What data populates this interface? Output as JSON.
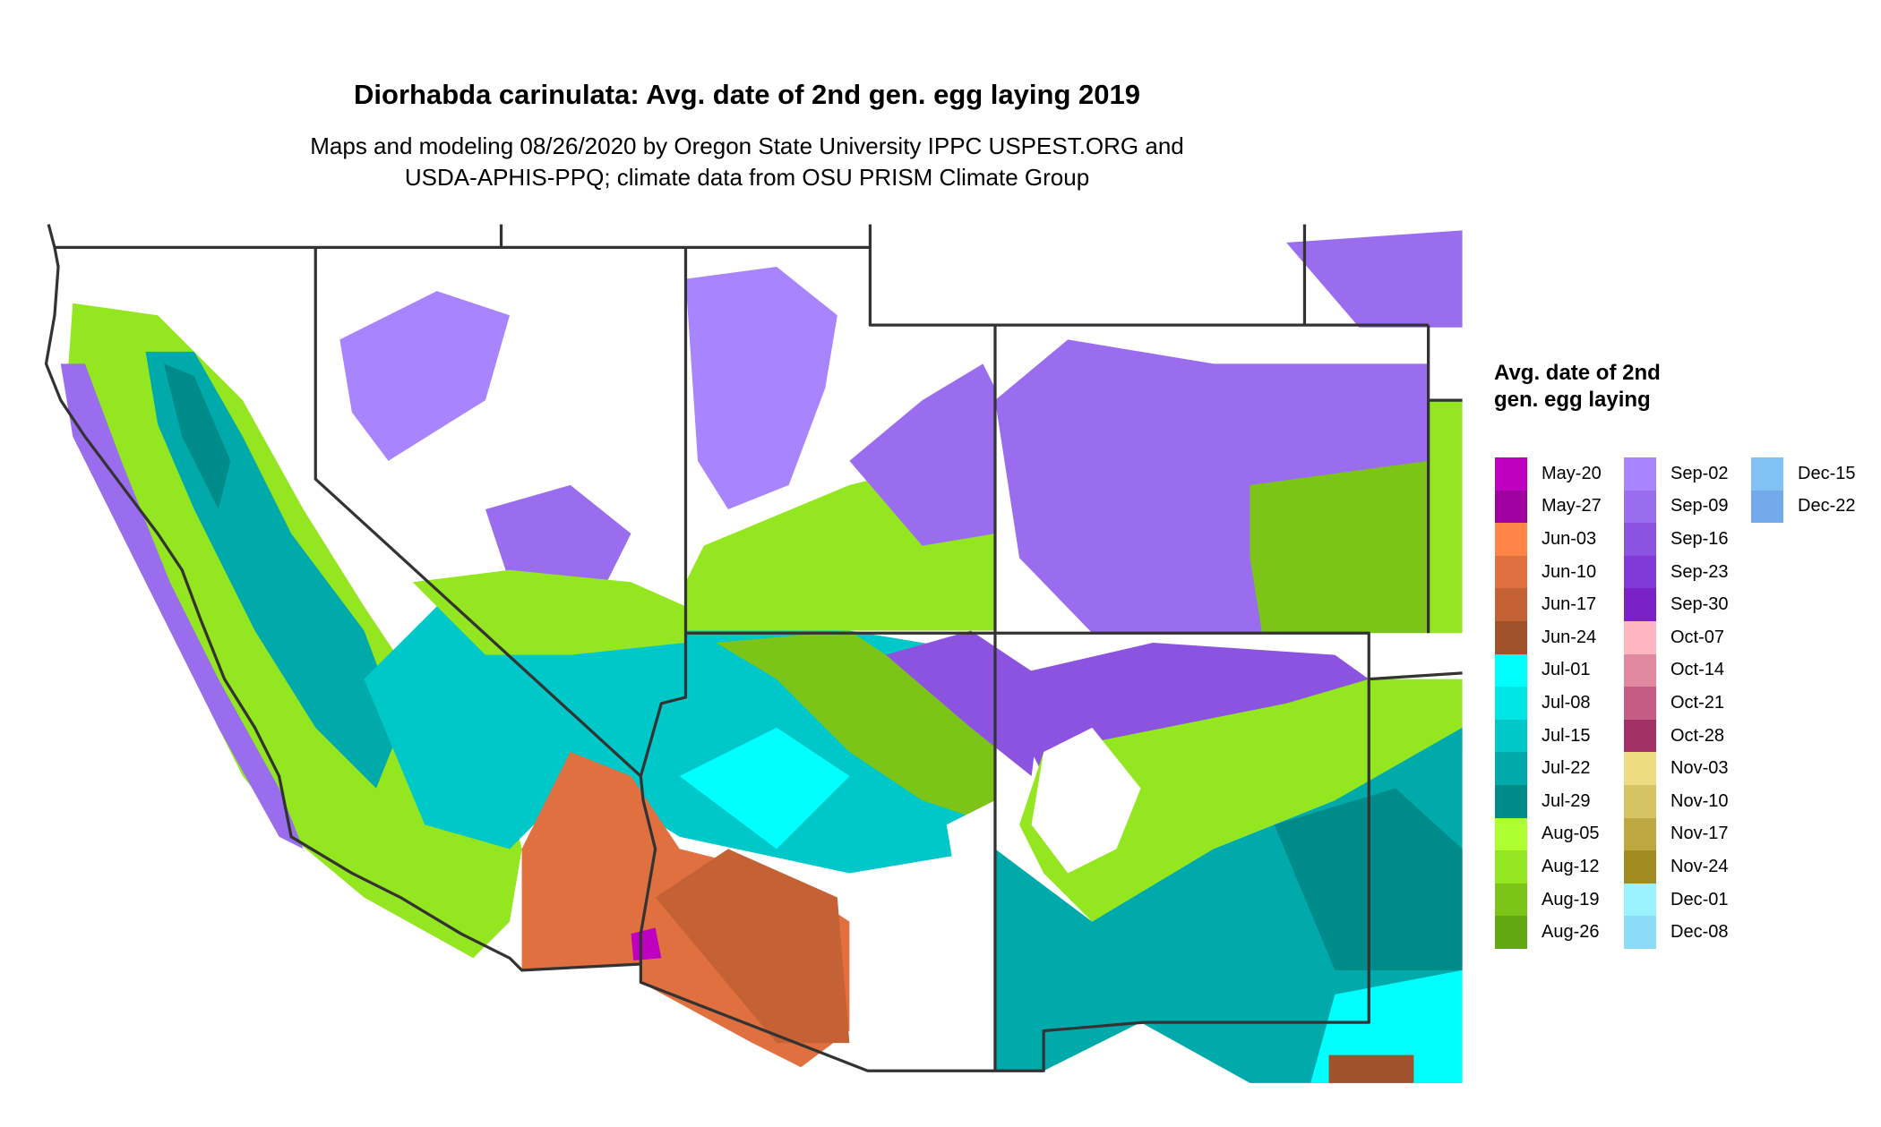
{
  "title": "Diorhabda carinulata: Avg. date of 2nd gen. egg laying 2019",
  "subtitle_line1": "Maps and modeling 08/26/2020 by Oregon State University IPPC USPEST.ORG and",
  "subtitle_line2": "USDA-APHIS-PPQ; climate data from OSU PRISM Climate Group",
  "legend": {
    "title": "Avg. date of 2nd gen. egg laying",
    "items": [
      {
        "label": "May-20",
        "color": "#c000c0"
      },
      {
        "label": "May-27",
        "color": "#a000a0"
      },
      {
        "label": "Jun-03",
        "color": "#ff8448"
      },
      {
        "label": "Jun-10",
        "color": "#e07040"
      },
      {
        "label": "Jun-17",
        "color": "#c46236"
      },
      {
        "label": "Jun-24",
        "color": "#a0522d"
      },
      {
        "label": "Jul-01",
        "color": "#00ffff"
      },
      {
        "label": "Jul-08",
        "color": "#00e5e5"
      },
      {
        "label": "Jul-15",
        "color": "#00c8c8"
      },
      {
        "label": "Jul-22",
        "color": "#00aaaa"
      },
      {
        "label": "Jul-29",
        "color": "#008b8b"
      },
      {
        "label": "Aug-05",
        "color": "#adff2f"
      },
      {
        "label": "Aug-12",
        "color": "#94e620"
      },
      {
        "label": "Aug-19",
        "color": "#7cc418"
      },
      {
        "label": "Aug-26",
        "color": "#62a810"
      },
      {
        "label": "Sep-02",
        "color": "#a884ff"
      },
      {
        "label": "Sep-09",
        "color": "#9a6cee"
      },
      {
        "label": "Sep-16",
        "color": "#8c52e0"
      },
      {
        "label": "Sep-23",
        "color": "#823ad6"
      },
      {
        "label": "Sep-30",
        "color": "#7a22c8"
      },
      {
        "label": "Oct-07",
        "color": "#ffb6c1"
      },
      {
        "label": "Oct-14",
        "color": "#e088a0"
      },
      {
        "label": "Oct-21",
        "color": "#c45c84"
      },
      {
        "label": "Oct-28",
        "color": "#a23266"
      },
      {
        "label": "Nov-03",
        "color": "#eedc82"
      },
      {
        "label": "Nov-10",
        "color": "#d6c464"
      },
      {
        "label": "Nov-17",
        "color": "#bea842"
      },
      {
        "label": "Nov-24",
        "color": "#a28c22"
      },
      {
        "label": "Dec-01",
        "color": "#9af4ff"
      },
      {
        "label": "Dec-08",
        "color": "#8cdcf8"
      },
      {
        "label": "Dec-15",
        "color": "#80c2f4"
      },
      {
        "label": "Dec-22",
        "color": "#72aaec"
      }
    ]
  },
  "border_color": "#333333"
}
